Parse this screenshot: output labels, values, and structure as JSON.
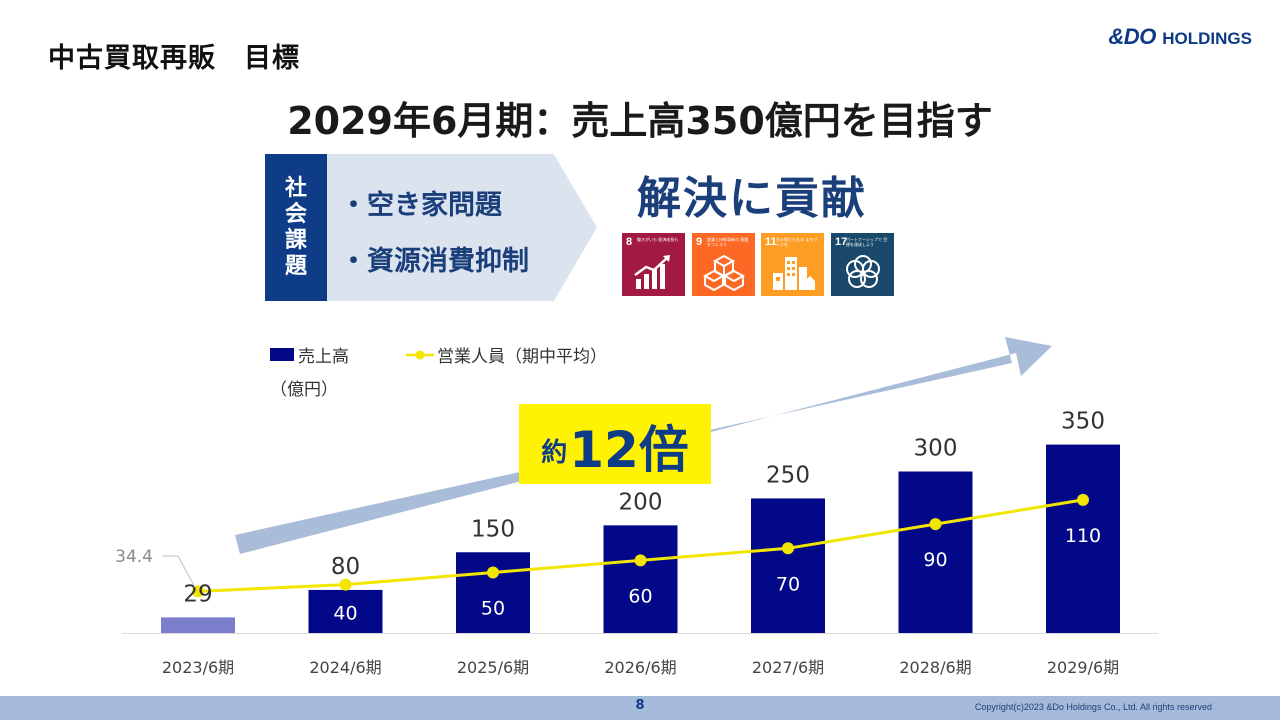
{
  "header": {
    "section_title": "中古買取再販　目標",
    "logo_brand": "&DO",
    "logo_rest": "HOLDINGS",
    "headline": "2029年6月期：売上高350億円を目指す"
  },
  "issues": {
    "label": [
      "社",
      "会",
      "課",
      "題"
    ],
    "items": [
      "・空き家問題",
      "・資源消費抑制"
    ],
    "resolve": "解決に貢献"
  },
  "sdgs": [
    {
      "number": "8",
      "text": "働きがいも 経済成長も",
      "color": "#a21942",
      "icon": "growth-chart-icon"
    },
    {
      "number": "9",
      "text": "産業と技術革新の 基盤をつくろう",
      "color": "#fd6925",
      "icon": "cubes-icon"
    },
    {
      "number": "11",
      "text": "住み続けられる まちづくりを",
      "color": "#fd9d24",
      "icon": "city-icon"
    },
    {
      "number": "17",
      "text": "パートナーシップで 目標を達成しよう",
      "color": "#19486a",
      "icon": "flower-icon"
    }
  ],
  "legend": {
    "bar": "売上高",
    "line": "営業人員（期中平均）",
    "unit": "（億円）"
  },
  "badge": {
    "prefix": "約",
    "value": "12倍"
  },
  "colors": {
    "bar": "#020887",
    "bar_first": "#7b7fcb",
    "line": "#f2e600",
    "arrow": "#a9bcd8",
    "dark_blue": "#0f3c86"
  },
  "chart_data": {
    "type": "bar",
    "categories": [
      "2023/6期",
      "2024/6期",
      "2025/6期",
      "2026/6期",
      "2027/6期",
      "2028/6期",
      "2029/6期"
    ],
    "series": [
      {
        "name": "売上高",
        "type": "bar",
        "values": [
          29,
          80,
          150,
          200,
          250,
          300,
          350
        ]
      },
      {
        "name": "営業人員（期中平均）",
        "type": "line",
        "values": [
          34.4,
          40,
          50,
          60,
          70,
          90,
          110
        ]
      }
    ],
    "legend_position": "top-left",
    "grid": false
  },
  "footer": {
    "page": "8",
    "copyright": "Copyright(c)2023 &Do Holdings Co., Ltd. All rights reserved"
  }
}
